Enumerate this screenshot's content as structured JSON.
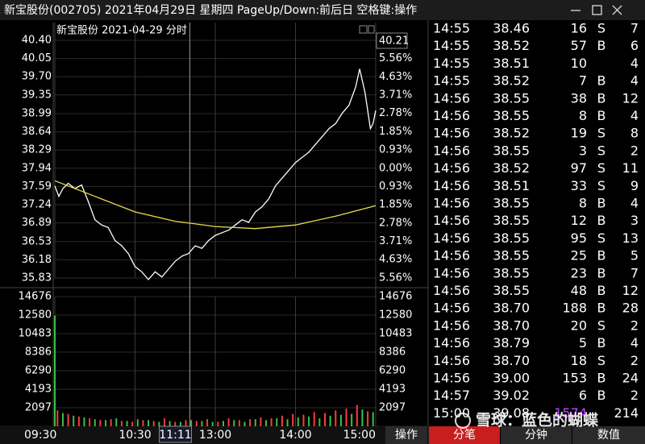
{
  "window": {
    "title": "新宝股份(002705) 2021年04月29日 星期四 PageUp/Down:前后日 空格键:操作"
  },
  "chart_data": {
    "type": "line",
    "title": "新宝股份  2021-04-29 分时",
    "price_box": "40.21",
    "xlim": [
      0,
      240
    ],
    "xticks": [
      {
        "value": 0,
        "label": "09:30"
      },
      {
        "value": 60,
        "label": "10:30"
      },
      {
        "value": 120,
        "label": "13:00"
      },
      {
        "value": 180,
        "label": "14:00"
      },
      {
        "value": 240,
        "label": "15:00"
      }
    ],
    "ylim": [
      35.83,
      40.4
    ],
    "yticks": [
      {
        "value": 40.4,
        "label": "40.40"
      },
      40.05,
      {
        "value": 39.7,
        "label": "39.70"
      },
      39.35,
      38.99,
      38.64,
      38.29,
      37.94,
      37.59,
      37.24,
      36.89,
      36.53,
      36.18,
      35.83
    ],
    "y2lim": [
      -5.56,
      6.48
    ],
    "y2ticks": [
      {
        "value": 5.56,
        "label": "5.56%"
      },
      {
        "value": 4.63,
        "label": "4.63%"
      },
      {
        "value": 3.71,
        "label": "3.71%"
      },
      {
        "value": 2.78,
        "label": "2.78%"
      },
      {
        "value": 1.85,
        "label": "1.85%"
      },
      {
        "value": 0.93,
        "label": "0.93%"
      },
      {
        "value": 0,
        "label": "0.00%"
      },
      {
        "value": -0.93,
        "label": "0.93%"
      },
      {
        "value": -1.85,
        "label": "1.85%"
      },
      {
        "value": -2.78,
        "label": "2.78%"
      },
      {
        "value": -3.71,
        "label": "3.71%"
      },
      {
        "value": -4.63,
        "label": "4.63%"
      },
      {
        "value": -5.56,
        "label": "5.56%"
      }
    ],
    "grid": true,
    "cursor": {
      "x": 101,
      "label": "11:11"
    },
    "series": [
      {
        "color": "#ffffff",
        "x": [
          0,
          3,
          6,
          10,
          15,
          20,
          25,
          30,
          35,
          40,
          45,
          50,
          55,
          60,
          65,
          70,
          75,
          80,
          85,
          90,
          95,
          100,
          105,
          110,
          115,
          120,
          125,
          130,
          135,
          140,
          145,
          150,
          155,
          160,
          165,
          170,
          175,
          180,
          185,
          190,
          195,
          200,
          205,
          210,
          215,
          220,
          225,
          228,
          232,
          236,
          238,
          240
        ],
        "values": [
          37.6,
          37.4,
          37.55,
          37.65,
          37.55,
          37.62,
          37.3,
          36.95,
          36.85,
          36.8,
          36.55,
          36.45,
          36.3,
          36.05,
          35.95,
          35.8,
          35.95,
          35.85,
          36.0,
          36.15,
          36.25,
          36.3,
          36.45,
          36.4,
          36.55,
          36.65,
          36.7,
          36.75,
          36.85,
          36.95,
          36.9,
          37.1,
          37.2,
          37.35,
          37.6,
          37.75,
          37.9,
          38.05,
          38.15,
          38.25,
          38.4,
          38.55,
          38.7,
          38.8,
          39.0,
          39.15,
          39.5,
          39.85,
          39.4,
          38.7,
          38.8,
          39.05
        ]
      },
      {
        "color": "#e8e04a",
        "x": [
          0,
          30,
          60,
          90,
          120,
          150,
          180,
          210,
          240
        ],
        "values": [
          37.7,
          37.4,
          37.1,
          36.92,
          36.82,
          36.78,
          36.85,
          37.02,
          37.22
        ]
      }
    ],
    "volume": {
      "ylim": [
        0,
        14676
      ],
      "yticks": [
        14676,
        12580,
        10483,
        8386,
        6290,
        4193,
        2097
      ],
      "series": [
        {
          "color": "#ff3b3b",
          "x": [
            2,
            10,
            18,
            26,
            34,
            42,
            50,
            58,
            66,
            74,
            82,
            90,
            98,
            106,
            114,
            122,
            130,
            138,
            146,
            154,
            162,
            170,
            178,
            186,
            194,
            202,
            210,
            218,
            226,
            234
          ],
          "values": [
            1800,
            1400,
            1100,
            900,
            700,
            800,
            600,
            500,
            700,
            600,
            900,
            500,
            700,
            600,
            800,
            500,
            900,
            700,
            800,
            1000,
            900,
            1200,
            1400,
            1300,
            1600,
            1500,
            1800,
            2000,
            2400,
            1700
          ]
        },
        {
          "color": "#33c24d",
          "x": [
            0,
            6,
            14,
            22,
            30,
            38,
            46,
            54,
            62,
            70,
            78,
            86,
            94,
            102,
            110,
            118,
            126,
            134,
            142,
            150,
            158,
            166,
            174,
            182,
            190,
            198,
            206,
            214,
            222,
            230,
            238
          ],
          "values": [
            12500,
            1500,
            1200,
            1000,
            800,
            700,
            900,
            600,
            800,
            700,
            500,
            600,
            500,
            700,
            600,
            500,
            600,
            700,
            500,
            800,
            700,
            900,
            800,
            1000,
            1100,
            900,
            1200,
            1300,
            1400,
            1900,
            1600
          ]
        }
      ]
    }
  },
  "trades": {
    "rows": [
      [
        "14:55",
        "38.46",
        "16",
        "S",
        "7"
      ],
      [
        "14:55",
        "38.52",
        "57",
        "B",
        "6"
      ],
      [
        "14:55",
        "38.51",
        "10",
        null,
        "4"
      ],
      [
        "14:55",
        "38.52",
        "7",
        "B",
        "4"
      ],
      [
        "14:56",
        "38.55",
        "38",
        "B",
        "12"
      ],
      [
        "14:56",
        "38.55",
        "8",
        "B",
        "4"
      ],
      [
        "14:56",
        "38.52",
        "19",
        "S",
        "8"
      ],
      [
        "14:56",
        "38.55",
        "3",
        "S",
        "2"
      ],
      [
        "14:56",
        "38.52",
        "97",
        "S",
        "11"
      ],
      [
        "14:56",
        "38.51",
        "33",
        "S",
        "9"
      ],
      [
        "14:56",
        "38.55",
        "8",
        "B",
        "4"
      ],
      [
        "14:56",
        "38.55",
        "12",
        "B",
        "3"
      ],
      [
        "14:56",
        "38.55",
        "95",
        "S",
        "13"
      ],
      [
        "14:56",
        "38.55",
        "25",
        "B",
        "5"
      ],
      [
        "14:56",
        "38.55",
        "23",
        "B",
        "7"
      ],
      [
        "14:56",
        "38.55",
        "48",
        "B",
        "12"
      ],
      [
        "14:56",
        "38.70",
        "188",
        "B",
        "28"
      ],
      [
        "14:56",
        "38.70",
        "20",
        "S",
        "2"
      ],
      [
        "14:56",
        "38.79",
        "5",
        "B",
        "4"
      ],
      [
        "14:56",
        "38.70",
        "18",
        "S",
        "2"
      ],
      [
        "14:56",
        "39.00",
        "153",
        "B",
        "24"
      ],
      [
        "14:57",
        "39.02",
        "6",
        "B",
        "2"
      ],
      [
        "15:00",
        "39.08",
        "1574",
        null,
        "214"
      ]
    ]
  },
  "tabs": [
    "操作",
    "分笔",
    "分钟",
    "数值"
  ],
  "watermark": "雪球：蓝色的蝴蝶"
}
